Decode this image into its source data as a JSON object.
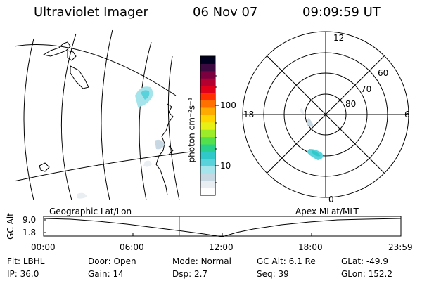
{
  "header": {
    "instrument": "Ultraviolet Imager",
    "date": "06 Nov 07",
    "time": "09:09:59 UT"
  },
  "colorbar": {
    "label": "photon cm⁻²s⁻¹",
    "ticks": [
      "100",
      "10"
    ],
    "colors": [
      "#ffffff",
      "#e8eef2",
      "#c8d8e2",
      "#a6e4ec",
      "#5ad2dc",
      "#30c8c8",
      "#28d08c",
      "#54e04a",
      "#9cec2a",
      "#e6f014",
      "#ffd400",
      "#ffaa00",
      "#ff7000",
      "#ff3000",
      "#e0001a",
      "#b40030",
      "#7a0040",
      "#3c0a40",
      "#000020"
    ]
  },
  "polar": {
    "mlt_labels": [
      "12",
      "6",
      "0",
      "18"
    ],
    "lat_labels": [
      "60",
      "70",
      "80"
    ]
  },
  "timeline": {
    "left_label": "Geographic Lat/Lon",
    "right_label": "Apex MLat/MLT",
    "axis_title": "GC Alt",
    "y_ticks": [
      "9.0",
      "1.8"
    ],
    "x_ticks": [
      "00:00",
      "06:00",
      "12:00",
      "18:00",
      "23:59"
    ],
    "current_marker_color": "#ff0000"
  },
  "info": {
    "row1": [
      {
        "label": "Flt:",
        "value": "LBHL"
      },
      {
        "label": "Door:",
        "value": "Open"
      },
      {
        "label": "Mode:",
        "value": "Normal"
      },
      {
        "label": "GC Alt:",
        "value": "6.1 Re"
      },
      {
        "label": "GLat:",
        "value": "-49.9"
      }
    ],
    "row2": [
      {
        "label": "IP:",
        "value": "36.0"
      },
      {
        "label": "Gain:",
        "value": "14"
      },
      {
        "label": "Dsp:",
        "value": "2.7"
      },
      {
        "label": "Seq:",
        "value": "39"
      },
      {
        "label": "GLon:",
        "value": "152.2"
      }
    ]
  }
}
